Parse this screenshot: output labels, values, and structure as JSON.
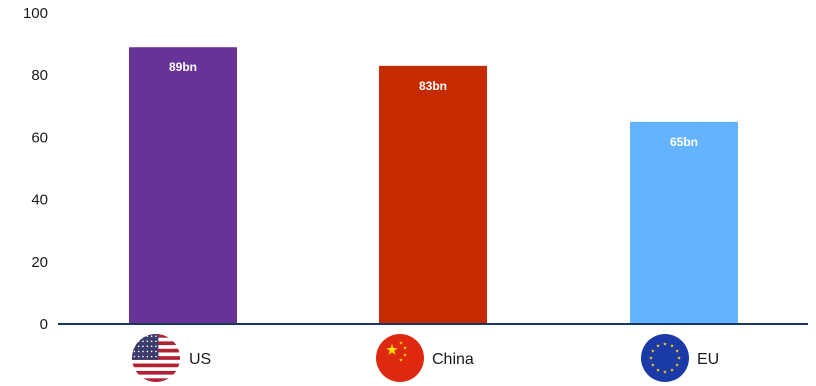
{
  "chart_data": {
    "type": "bar",
    "categories": [
      "US",
      "China",
      "EU"
    ],
    "values": [
      89,
      83,
      65
    ],
    "data_labels": [
      "89bn",
      "83bn",
      "65bn"
    ],
    "bar_colors": [
      "#673399",
      "#c52a00",
      "#63b3ff"
    ],
    "category_icons": [
      "us-flag-icon",
      "china-flag-icon",
      "eu-flag-icon"
    ],
    "ylim": [
      0,
      100
    ],
    "yticks": [
      0,
      20,
      40,
      60,
      80,
      100
    ],
    "grid": false,
    "axis_color": "#17375e",
    "title": "",
    "xlabel": "",
    "ylabel": ""
  }
}
